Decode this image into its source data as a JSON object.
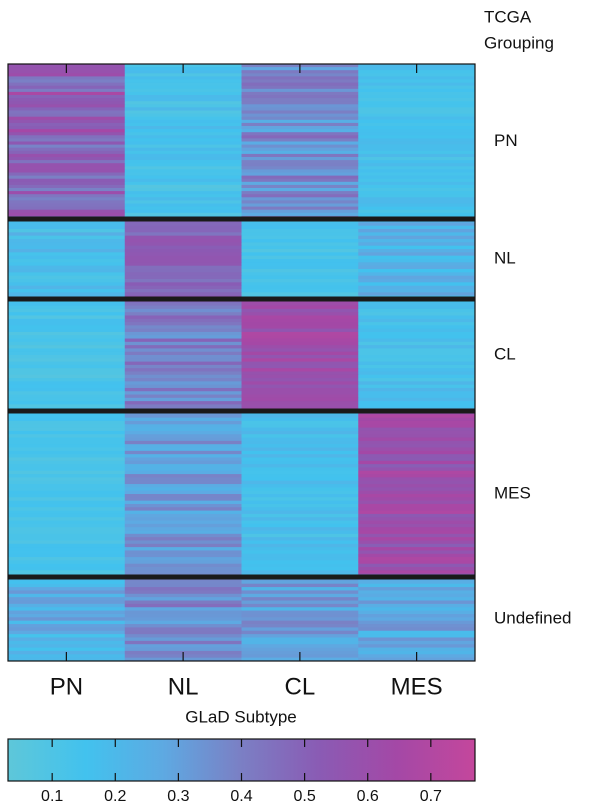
{
  "chart_data": {
    "type": "heatmap",
    "xlabel": "GLaD Subtype",
    "columns": [
      "PN",
      "NL",
      "CL",
      "MES"
    ],
    "row_group_title": [
      "TCGA",
      "Grouping"
    ],
    "row_groups": [
      {
        "label": "PN",
        "rows": 50,
        "means": [
          0.52,
          0.14,
          0.36,
          0.15
        ],
        "spread": [
          0.16,
          0.07,
          0.12,
          0.05
        ]
      },
      {
        "label": "NL",
        "rows": 24,
        "means": [
          0.17,
          0.5,
          0.13,
          0.22
        ],
        "spread": [
          0.08,
          0.07,
          0.05,
          0.08
        ]
      },
      {
        "label": "CL",
        "rows": 34,
        "means": [
          0.12,
          0.4,
          0.62,
          0.16
        ],
        "spread": [
          0.05,
          0.1,
          0.07,
          0.06
        ]
      },
      {
        "label": "MES",
        "rows": 50,
        "means": [
          0.12,
          0.32,
          0.16,
          0.6
        ],
        "spread": [
          0.04,
          0.09,
          0.06,
          0.09
        ]
      },
      {
        "label": "Undefined",
        "rows": 25,
        "means": [
          0.24,
          0.37,
          0.3,
          0.28
        ],
        "spread": [
          0.1,
          0.1,
          0.1,
          0.1
        ]
      }
    ],
    "colorbar": {
      "min": 0.03,
      "max": 0.77,
      "ticks": [
        0.1,
        0.2,
        0.3,
        0.4,
        0.5,
        0.6,
        0.7
      ],
      "tick_labels": [
        "0.1",
        "0.2",
        "0.3",
        "0.4",
        "0.5",
        "0.6",
        "0.7"
      ],
      "colors": [
        "#5ec7d9",
        "#42c2ee",
        "#5ea9e2",
        "#7b7fc4",
        "#8a5bb4",
        "#a448a6",
        "#c4479c"
      ]
    },
    "group_separator_color": "#1a1a1a"
  }
}
